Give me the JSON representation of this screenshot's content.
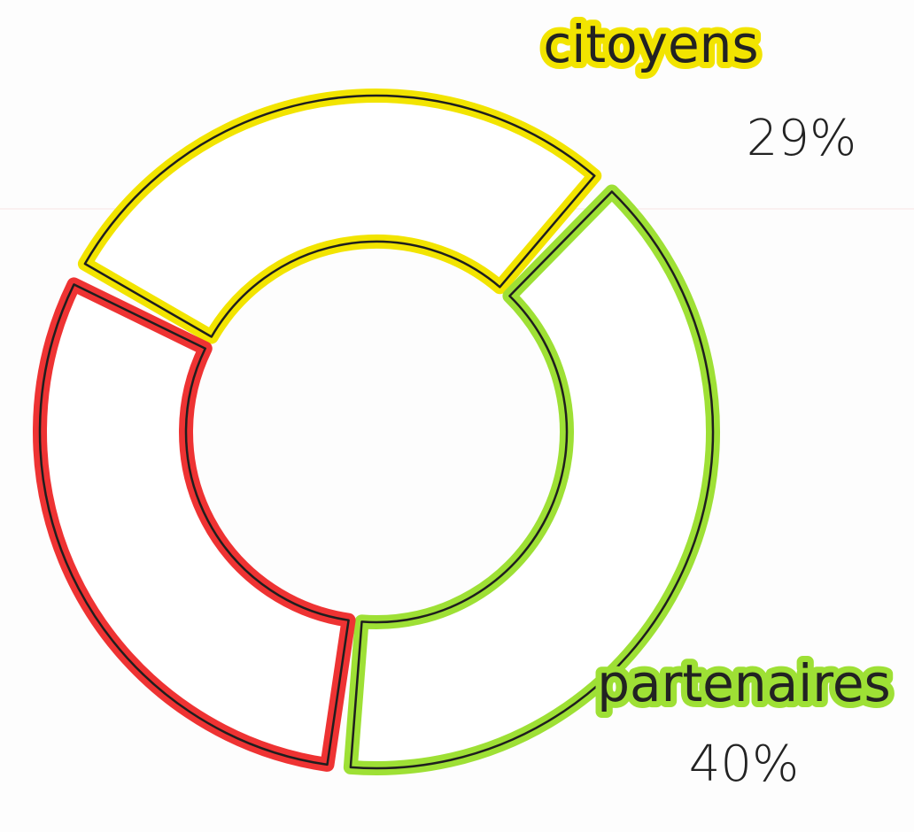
{
  "chart_data": {
    "type": "donut",
    "categories": [
      "citoyens",
      "partenaires",
      null
    ],
    "values": [
      29,
      40,
      31
    ],
    "value_labels": [
      "29%",
      "40%",
      null
    ],
    "colors": [
      "#f2e400",
      "#9ee035",
      "#ee3333"
    ]
  }
}
